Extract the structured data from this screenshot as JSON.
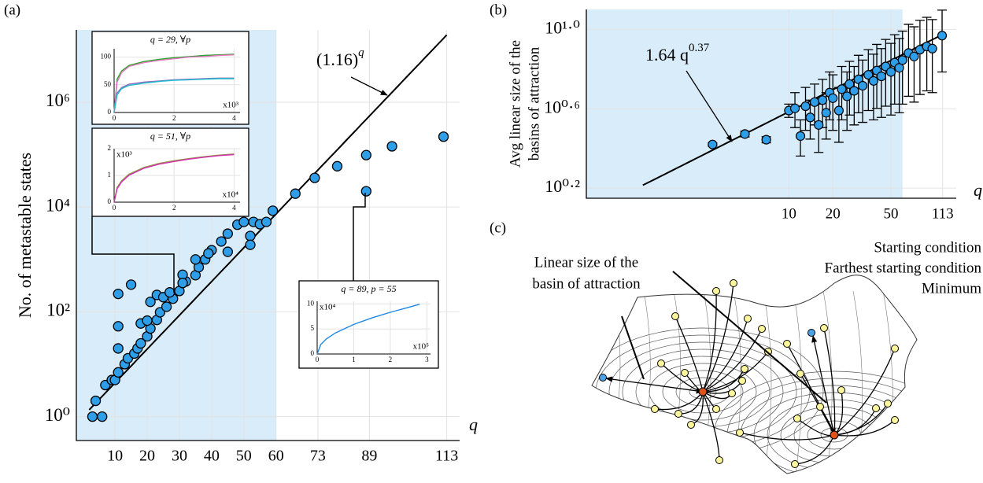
{
  "chart_data": [
    {
      "type": "scatter",
      "panel_label": "(a)",
      "y_label": "No. of metastable states",
      "x_label": "q",
      "xlim": [
        -2,
        117
      ],
      "ylim": [
        0.35,
        24000000
      ],
      "ylog": true,
      "grid": true,
      "xticks": [
        10,
        20,
        30,
        40,
        50,
        60,
        73,
        89,
        113
      ],
      "yticks": [
        {
          "value": 1,
          "label": "10⁰"
        },
        {
          "value": 100,
          "label": "10²"
        },
        {
          "value": 10000,
          "label": "10⁴"
        },
        {
          "value": 1000000,
          "label": "10⁶"
        }
      ],
      "shaded_until": 60,
      "color": "#2f9ee8",
      "fit": {
        "label": "(1.16)",
        "exponent_label": "q",
        "base": 1.16,
        "xlim": [
          2,
          113
        ]
      },
      "x": [
        3,
        6,
        4,
        7,
        9,
        10,
        11,
        13,
        14,
        16,
        17,
        18,
        20,
        21,
        23,
        24,
        26,
        28,
        30,
        32,
        35,
        36,
        38,
        40,
        43,
        45,
        48,
        50,
        53,
        55,
        57,
        59,
        11,
        11,
        11,
        15,
        18,
        20,
        21,
        23,
        25,
        27,
        31,
        31,
        35,
        39,
        45,
        52,
        52,
        66,
        72,
        79,
        88,
        88,
        96,
        112
      ],
      "values": [
        1,
        1,
        2,
        4,
        5,
        5,
        7,
        10,
        13,
        16,
        20,
        25,
        34,
        48,
        70,
        98,
        125,
        178,
        250,
        380,
        500,
        710,
        1000,
        1500,
        2200,
        3100,
        4600,
        5200,
        5200,
        4700,
        5200,
        8500,
        20,
        53,
        220,
        330,
        60,
        68,
        155,
        210,
        190,
        235,
        510,
        355,
        1000,
        1300,
        1400,
        2800,
        1900,
        18000,
        36000,
        60000,
        98000,
        20000,
        144000,
        220000
      ]
    },
    {
      "type": "line",
      "title": "q = 29, ∀p",
      "x_multiplier": "x10³",
      "grid": true,
      "xlim": [
        0,
        4.2
      ],
      "ylim": [
        0,
        115
      ],
      "xticks": [
        0,
        2,
        4
      ],
      "yticks": [
        0,
        50,
        100
      ],
      "x": [
        0,
        0.1,
        0.25,
        0.5,
        1,
        1.5,
        2,
        2.5,
        3,
        3.5,
        4
      ],
      "series": [
        {
          "color": "#2ca02c",
          "values": [
            0,
            60,
            75,
            85,
            92,
            96,
            99,
            101,
            103,
            104,
            105
          ]
        },
        {
          "color": "#e377c2",
          "values": [
            0,
            55,
            72,
            83,
            90,
            94,
            97,
            100,
            101,
            103,
            104
          ]
        },
        {
          "color": "#9467bd",
          "values": [
            0,
            35,
            45,
            51,
            55,
            57,
            59,
            60,
            61,
            62,
            62
          ]
        },
        {
          "color": "#17becf",
          "values": [
            0,
            32,
            43,
            49,
            53,
            56,
            58,
            59,
            60,
            61,
            61
          ]
        }
      ]
    },
    {
      "type": "line",
      "title": "q = 51, ∀p",
      "x_multiplier": "x10⁴",
      "y_multiplier": "x10³",
      "grid": true,
      "xlim": [
        0,
        4.2
      ],
      "ylim": [
        0,
        2
      ],
      "xticks": [
        0,
        2,
        4
      ],
      "yticks": [
        0,
        1,
        2
      ],
      "x": [
        0,
        0.1,
        0.25,
        0.5,
        1,
        1.5,
        2,
        2.5,
        3,
        3.5,
        4
      ],
      "series": [
        {
          "color": "#8c9a3c",
          "values": [
            0,
            0.55,
            0.8,
            1.05,
            1.3,
            1.45,
            1.55,
            1.63,
            1.7,
            1.76,
            1.8
          ]
        },
        {
          "color": "#d62fb4",
          "values": [
            0,
            0.5,
            0.76,
            1.01,
            1.27,
            1.42,
            1.52,
            1.61,
            1.68,
            1.74,
            1.78
          ]
        }
      ]
    },
    {
      "type": "line",
      "title": "q = 89, p = 55",
      "x_multiplier": "x10⁵",
      "y_multiplier": "x10⁴",
      "grid": true,
      "xlim": [
        0,
        3.1
      ],
      "ylim": [
        0,
        10.5
      ],
      "xticks": [
        0,
        1,
        2,
        3
      ],
      "yticks": [
        0,
        5,
        10
      ],
      "x": [
        0,
        0.1,
        0.25,
        0.5,
        1,
        1.5,
        2,
        2.5,
        2.8
      ],
      "series": [
        {
          "color": "#1e88e5",
          "values": [
            0,
            1.9,
            3.0,
            4.2,
            5.9,
            7.2,
            8.3,
            9.3,
            9.9
          ]
        }
      ]
    },
    {
      "type": "errorbar",
      "panel_label": "(b)",
      "y_label": [
        "Avg linear size of the",
        "basins of attraction"
      ],
      "x_label": "q",
      "xlim": [
        0.41,
        140
      ],
      "xlog": true,
      "ylim": [
        1.41,
        12.6
      ],
      "ylog": true,
      "grid": true,
      "xticks": [
        10,
        20,
        50,
        113
      ],
      "yticks": [
        {
          "value": 1.585,
          "label": "10⁰·²"
        },
        {
          "value": 3.981,
          "label": "10⁰·⁶"
        },
        {
          "value": 10,
          "label": "10¹·⁰"
        }
      ],
      "shaded_until": 60,
      "color": "#2f9ee8",
      "fit": {
        "label": "1.64 q",
        "exponent_label": "0.37",
        "coef": 1.64,
        "exponent": 0.37,
        "xlim": [
          1,
          113
        ]
      },
      "x": [
        3,
        5,
        7,
        10,
        11,
        12,
        13,
        14,
        15,
        16,
        17,
        18,
        19,
        20,
        22,
        23,
        25,
        26,
        28,
        30,
        32,
        35,
        38,
        40,
        43,
        46,
        50,
        53,
        57,
        60,
        66,
        72,
        79,
        88,
        96,
        112
      ],
      "values": [
        2.63,
        2.97,
        2.78,
        3.9,
        4.0,
        2.9,
        4.1,
        3.6,
        4.3,
        3.3,
        4.4,
        3.8,
        4.8,
        4.5,
        3.9,
        5.0,
        4.6,
        5.3,
        4.9,
        5.6,
        5.2,
        5.9,
        5.5,
        6.2,
        5.8,
        6.5,
        6.1,
        6.8,
        6.4,
        7.0,
        7.6,
        7.3,
        7.9,
        8.2,
        8.0,
        9.3
      ],
      "errors": [
        0.05,
        0.1,
        0.1,
        0.3,
        0.8,
        0.6,
        1.0,
        0.8,
        1.0,
        0.9,
        1.2,
        1.0,
        1.3,
        1.4,
        1.2,
        1.5,
        1.5,
        1.6,
        1.6,
        1.8,
        1.8,
        2.0,
        2.0,
        2.2,
        2.2,
        2.4,
        2.4,
        2.6,
        2.6,
        2.8,
        3.0,
        3.0,
        3.2,
        3.3,
        3.2,
        3.2
      ]
    }
  ],
  "diagram": {
    "panel_label": "(c)",
    "callout": [
      "Linear size of the",
      "basin of attraction"
    ],
    "legend": [
      "Starting condition",
      "Farthest starting condition",
      "Minimum"
    ]
  }
}
